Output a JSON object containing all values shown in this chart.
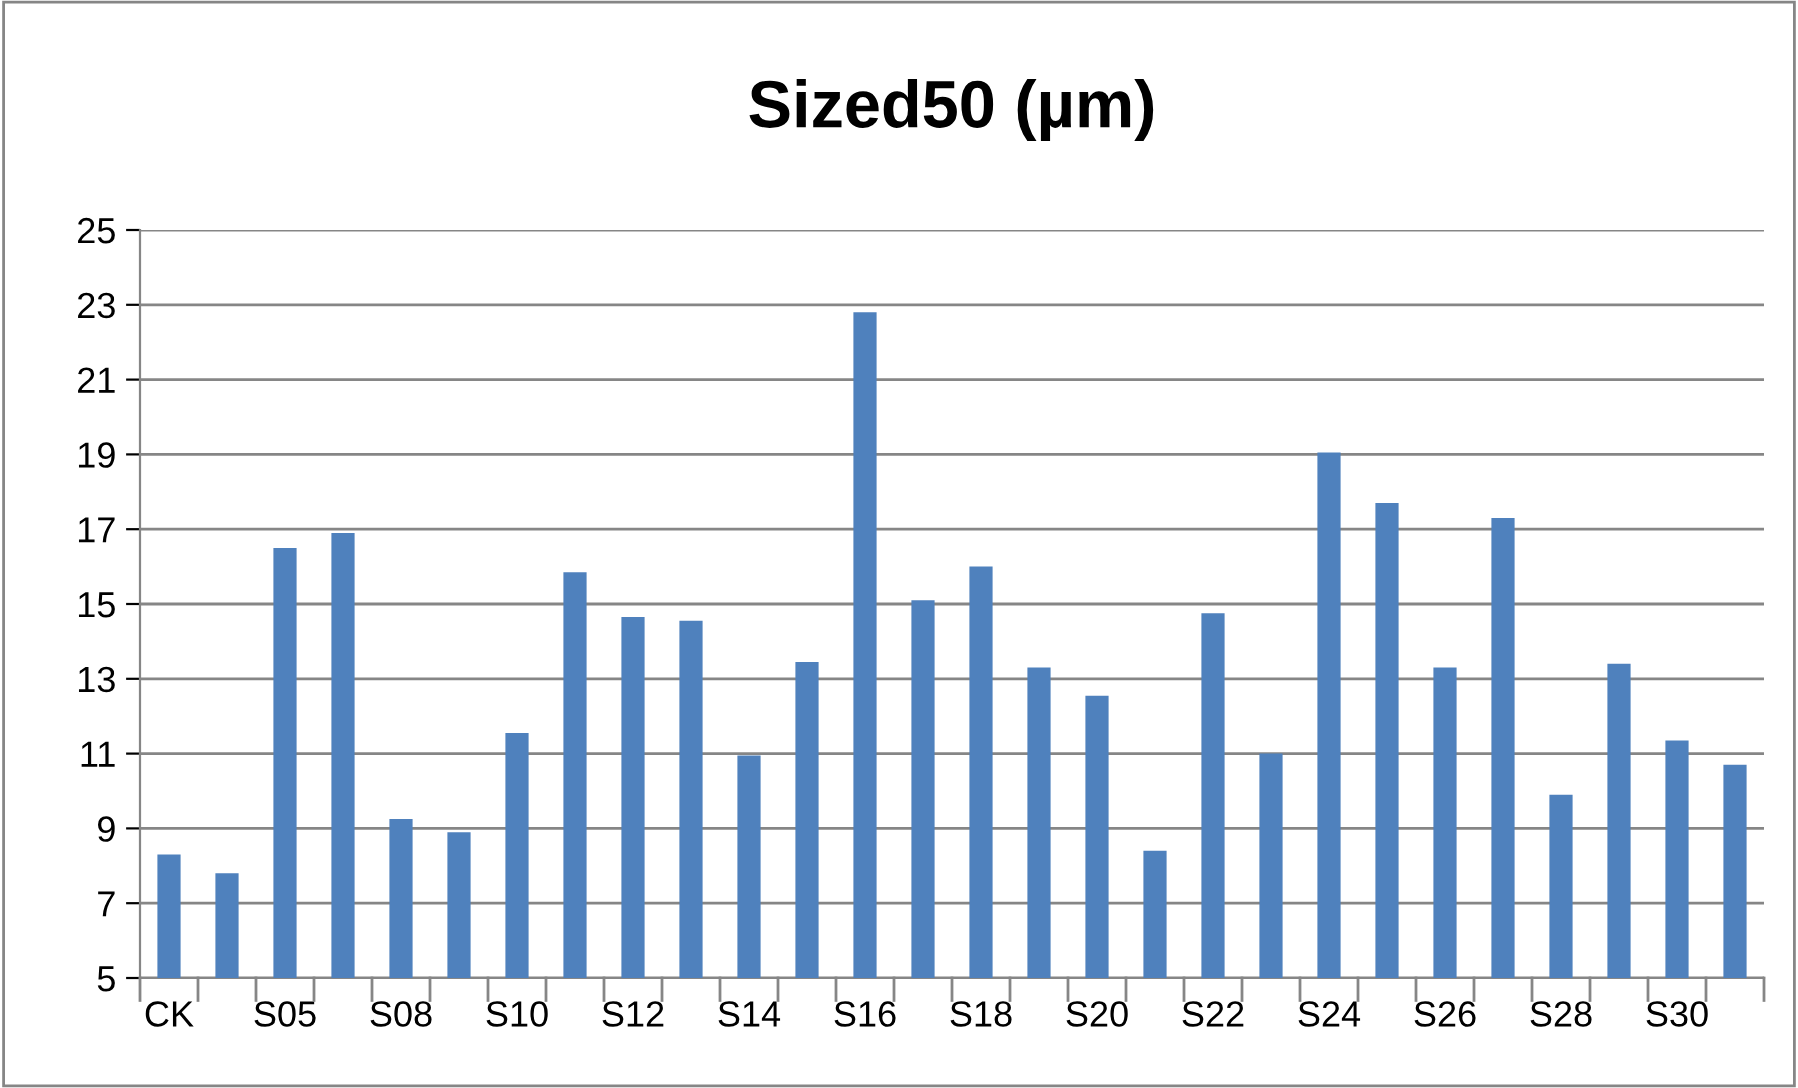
{
  "chart_data": {
    "type": "bar",
    "title": "Sized50 (µm)",
    "categories": [
      "CK",
      null,
      "S05",
      null,
      "S08",
      null,
      "S10",
      null,
      "S12",
      null,
      "S14",
      null,
      "S16",
      null,
      "S18",
      null,
      "S20",
      null,
      "S22",
      null,
      "S24",
      null,
      "S26",
      null,
      "S28",
      null,
      "S30",
      null
    ],
    "values": [
      8.3,
      7.8,
      16.5,
      16.9,
      9.25,
      8.9,
      11.55,
      15.85,
      14.65,
      14.55,
      10.95,
      13.45,
      22.8,
      15.1,
      16.0,
      13.3,
      12.55,
      8.4,
      14.75,
      11.0,
      19.05,
      17.7,
      13.3,
      17.3,
      9.9,
      13.4,
      11.35,
      10.7
    ],
    "color": "#4f81bd",
    "ylim": [
      5,
      25
    ],
    "yticks": [
      5,
      7,
      9,
      11,
      13,
      15,
      17,
      19,
      21,
      23,
      25
    ],
    "grid": "y",
    "legend": false
  }
}
